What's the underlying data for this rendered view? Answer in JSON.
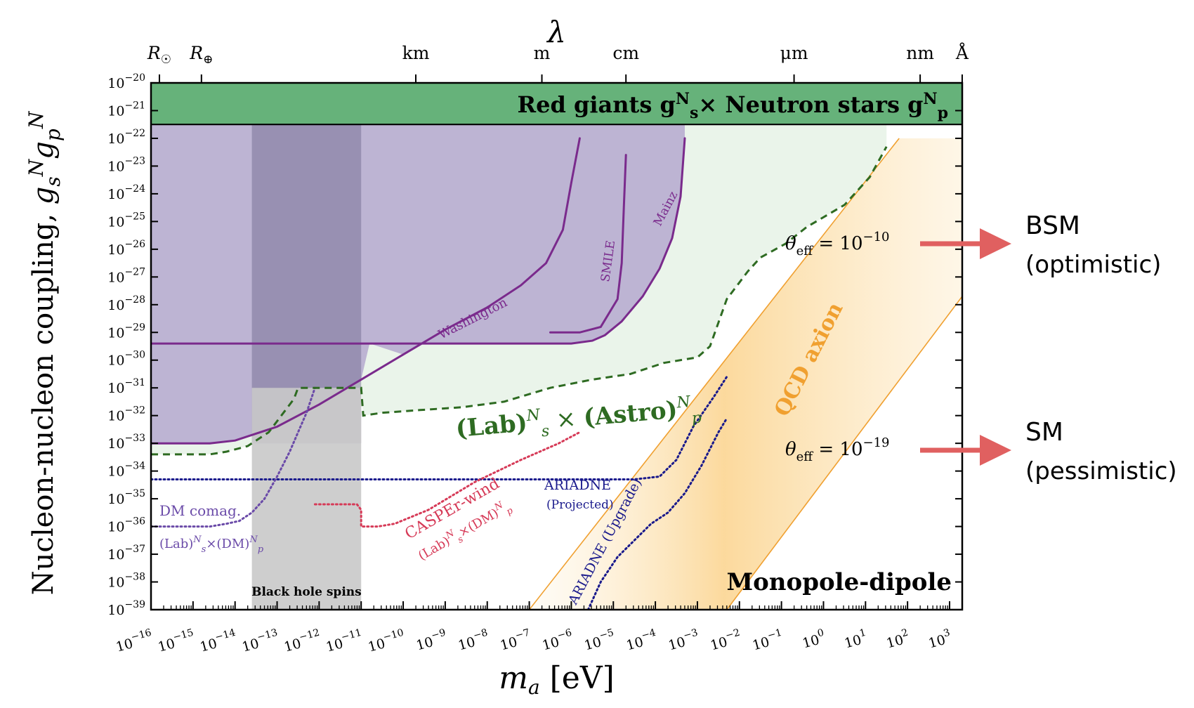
{
  "chart_data": {
    "type": "area",
    "title": "",
    "xlabel": "m_a [eV]",
    "ylabel": "Nucleon-nucleon coupling, g_s^N g_p^N",
    "top_axis_label": "λ",
    "x_scale": "log",
    "y_scale": "log",
    "xlim": [
      1e-16,
      2000.0
    ],
    "ylim": [
      1e-39,
      1e-20
    ],
    "x_ticks": [
      {
        "exp": "-16",
        "base": "10"
      },
      {
        "exp": "-15",
        "base": "10"
      },
      {
        "exp": "-14",
        "base": "10"
      },
      {
        "exp": "-13",
        "base": "10"
      },
      {
        "exp": "-12",
        "base": "10"
      },
      {
        "exp": "-11",
        "base": "10"
      },
      {
        "exp": "-10",
        "base": "10"
      },
      {
        "exp": "-9",
        "base": "10"
      },
      {
        "exp": "-8",
        "base": "10"
      },
      {
        "exp": "-7",
        "base": "10"
      },
      {
        "exp": "-6",
        "base": "10"
      },
      {
        "exp": "-5",
        "base": "10"
      },
      {
        "exp": "-4",
        "base": "10"
      },
      {
        "exp": "-3",
        "base": "10"
      },
      {
        "exp": "-2",
        "base": "10"
      },
      {
        "exp": "-1",
        "base": "10"
      },
      {
        "exp": "0",
        "base": "10"
      },
      {
        "exp": "1",
        "base": "10"
      },
      {
        "exp": "2",
        "base": "10"
      },
      {
        "exp": "3",
        "base": "10"
      }
    ],
    "y_ticks": [
      {
        "exp": "-20",
        "base": "10"
      },
      {
        "exp": "-21",
        "base": "10"
      },
      {
        "exp": "-22",
        "base": "10"
      },
      {
        "exp": "-23",
        "base": "10"
      },
      {
        "exp": "-24",
        "base": "10"
      },
      {
        "exp": "-25",
        "base": "10"
      },
      {
        "exp": "-26",
        "base": "10"
      },
      {
        "exp": "-27",
        "base": "10"
      },
      {
        "exp": "-28",
        "base": "10"
      },
      {
        "exp": "-29",
        "base": "10"
      },
      {
        "exp": "-30",
        "base": "10"
      },
      {
        "exp": "-31",
        "base": "10"
      },
      {
        "exp": "-32",
        "base": "10"
      },
      {
        "exp": "-33",
        "base": "10"
      },
      {
        "exp": "-34",
        "base": "10"
      },
      {
        "exp": "-35",
        "base": "10"
      },
      {
        "exp": "-36",
        "base": "10"
      },
      {
        "exp": "-37",
        "base": "10"
      },
      {
        "exp": "-38",
        "base": "10"
      },
      {
        "exp": "-39",
        "base": "10"
      }
    ],
    "top_ticks": [
      {
        "label": "R",
        "sub": "☉",
        "log10_m": -15.8
      },
      {
        "label": "R",
        "sub": "⊕",
        "log10_m": -14.8
      },
      {
        "label": "km",
        "log10_m": -9.7
      },
      {
        "label": "m",
        "log10_m": -6.7
      },
      {
        "label": "cm",
        "log10_m": -4.7
      },
      {
        "label": "μm",
        "log10_m": -0.7
      },
      {
        "label": "nm",
        "log10_m": 2.3
      },
      {
        "label": "Å",
        "log10_m": 3.3
      }
    ],
    "regions": {
      "red_giants_neutron_stars": {
        "label": "Red giants g",
        "label_sub1": "s",
        "label_sup1": "N",
        "label_mid": "× Neutron stars g",
        "label_sub2": "p",
        "label_sup2": "N",
        "color": "#66b27a",
        "y_lower": -21.5
      },
      "lab_astro": {
        "label": "(Lab)",
        "sub1": "s",
        "sup1": "N",
        "mid": "× (Astro)",
        "sub2": "p",
        "sup2": "N",
        "color": "#2e6b22",
        "points": [
          [
            -16,
            -33.4
          ],
          [
            -14.6,
            -33.4
          ],
          [
            -14.2,
            -33.3
          ],
          [
            -13.7,
            -33.1
          ],
          [
            -13.2,
            -32.6
          ],
          [
            -12.6,
            -31.4
          ],
          [
            -12.5,
            -31.0
          ],
          [
            -11.9,
            -31.0
          ],
          [
            -11.1,
            -31.0
          ],
          [
            -11.0,
            -31.0
          ],
          [
            -10.95,
            -32.0
          ],
          [
            -10.5,
            -31.9
          ],
          [
            -9.6,
            -31.8
          ],
          [
            -8.6,
            -31.7
          ],
          [
            -7.6,
            -31.5
          ],
          [
            -6.5,
            -31.0
          ],
          [
            -5.5,
            -30.7
          ],
          [
            -4.6,
            -30.5
          ],
          [
            -3.8,
            -30.1
          ],
          [
            -3.0,
            -29.9
          ],
          [
            -2.7,
            -29.5
          ],
          [
            -2.3,
            -27.8
          ],
          [
            -1.8,
            -26.8
          ],
          [
            -1.5,
            -26.3
          ],
          [
            -0.9,
            -25.8
          ],
          [
            -0.4,
            -25.2
          ],
          [
            0.5,
            -24.4
          ],
          [
            1.1,
            -23.4
          ],
          [
            1.5,
            -22.3
          ]
        ]
      },
      "black_hole_spins": {
        "label": "Black hole spins",
        "x_range_log10": [
          -13.6,
          -11.0
        ],
        "color": "#c9c9c9"
      }
    },
    "series": [
      {
        "name": "Washington",
        "color": "#7a2a8c",
        "points": [
          [
            -16,
            -33.0
          ],
          [
            -14.6,
            -33.0
          ],
          [
            -14.0,
            -32.9
          ],
          [
            -13.0,
            -32.4
          ],
          [
            -12.0,
            -31.6
          ],
          [
            -11.0,
            -30.7
          ],
          [
            -10.0,
            -29.8
          ],
          [
            -9.0,
            -28.9
          ],
          [
            -8.0,
            -28.1
          ],
          [
            -7.2,
            -27.3
          ],
          [
            -6.6,
            -26.5
          ],
          [
            -6.2,
            -25.3
          ],
          [
            -6.0,
            -23.6
          ],
          [
            -5.8,
            -22.0
          ]
        ]
      },
      {
        "name": "SMILE",
        "color": "#7a2a8c",
        "points": [
          [
            -6.5,
            -29.0
          ],
          [
            -5.8,
            -29.0
          ],
          [
            -5.3,
            -28.8
          ],
          [
            -4.9,
            -27.8
          ],
          [
            -4.8,
            -26.5
          ],
          [
            -4.75,
            -24.5
          ],
          [
            -4.7,
            -22.6
          ]
        ]
      },
      {
        "name": "Mainz",
        "color": "#7a2a8c",
        "points": [
          [
            -16,
            -29.4
          ],
          [
            -6.0,
            -29.4
          ],
          [
            -5.5,
            -29.3
          ],
          [
            -5.2,
            -29.1
          ],
          [
            -4.8,
            -28.6
          ],
          [
            -4.3,
            -27.7
          ],
          [
            -3.9,
            -26.7
          ],
          [
            -3.6,
            -25.6
          ],
          [
            -3.4,
            -24.1
          ],
          [
            -3.3,
            -22.0
          ]
        ]
      },
      {
        "name": "ARIADNE (Projected)",
        "color": "#1a1a8c",
        "points": [
          [
            -16,
            -34.3
          ],
          [
            -4.9,
            -34.3
          ],
          [
            -4.5,
            -34.3
          ],
          [
            -3.9,
            -34.2
          ],
          [
            -3.5,
            -33.6
          ],
          [
            -3.1,
            -32.4
          ],
          [
            -2.6,
            -31.3
          ],
          [
            -2.3,
            -30.6
          ]
        ]
      },
      {
        "name": "ARIADNE (Upgrade)",
        "color": "#1a1a8c",
        "points": [
          [
            -5.6,
            -39.0
          ],
          [
            -5.3,
            -38.0
          ],
          [
            -4.9,
            -37.1
          ],
          [
            -4.5,
            -36.5
          ],
          [
            -4.1,
            -35.9
          ],
          [
            -3.7,
            -35.5
          ],
          [
            -3.3,
            -34.8
          ],
          [
            -2.9,
            -33.8
          ],
          [
            -2.5,
            -32.6
          ],
          [
            -2.3,
            -32.1
          ]
        ]
      },
      {
        "name": "CASPEr-wind",
        "color": "#d63a57",
        "points": [
          [
            -12.1,
            -35.2
          ],
          [
            -11.1,
            -35.2
          ],
          [
            -11.0,
            -35.4
          ],
          [
            -11.0,
            -36.0
          ],
          [
            -10.6,
            -36.0
          ],
          [
            -10.2,
            -35.9
          ],
          [
            -9.4,
            -35.4
          ],
          [
            -8.3,
            -34.4
          ],
          [
            -7.2,
            -33.6
          ],
          [
            -6.3,
            -33.0
          ],
          [
            -5.8,
            -32.6
          ]
        ]
      },
      {
        "name": "DM comag.",
        "color": "#6a4aa8",
        "points": [
          [
            -16,
            -36.0
          ],
          [
            -14.6,
            -36.0
          ],
          [
            -14.2,
            -35.9
          ],
          [
            -13.9,
            -35.8
          ],
          [
            -13.6,
            -35.5
          ],
          [
            -13.3,
            -35.0
          ],
          [
            -13.0,
            -34.2
          ],
          [
            -12.7,
            -33.3
          ],
          [
            -12.5,
            -32.6
          ],
          [
            -12.3,
            -31.9
          ],
          [
            -12.1,
            -31.0
          ]
        ]
      }
    ],
    "qcd_band": {
      "label": "QCD axion",
      "color": "#f0a030",
      "theta_upper": {
        "label": "θ",
        "sub": "eff",
        "value": " = 10",
        "sup": "−10"
      },
      "theta_lower": {
        "label": "θ",
        "sub": "eff",
        "value": " = 10",
        "sup": "−19"
      }
    },
    "annotations": {
      "monopole_dipole": "Monopole-dipole",
      "dm_comag_sub": "(Lab)",
      "dm_comag_sub_s": "s",
      "dm_comag_sub_sup": "N",
      "dm_comag_sub_mid": "×(DM)",
      "dm_comag_sub_p": "p",
      "dm_comag_sub_sup2": "N",
      "casper_sub": "(Lab)",
      "casper_sub_s": "s",
      "casper_sub_sup": "N",
      "casper_sub_mid": "×(DM)",
      "casper_sub_p": "p",
      "casper_sub_sup2": "N",
      "ariadne_projected_line1": "ARIADNE",
      "ariadne_projected_line2": "(Projected)",
      "bsm": "BSM",
      "bsm_sub": "(optimistic)",
      "sm": "SM",
      "sm_sub": "(pessimistic)"
    },
    "colors": {
      "purple_fill": "#bdb4d3",
      "lab_astro_fill": "#eaf4ea",
      "arrow": "#e06060"
    }
  }
}
